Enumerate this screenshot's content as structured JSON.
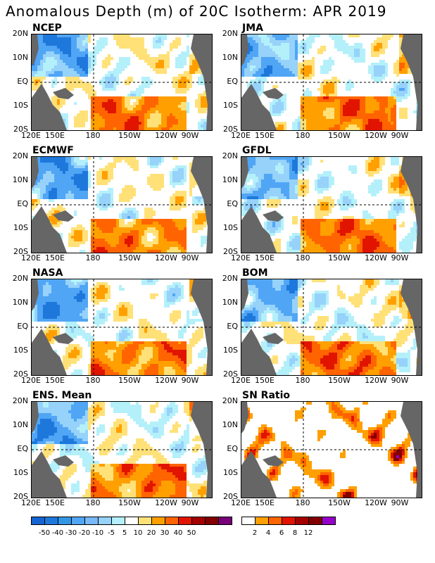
{
  "title": "Anomalous Depth (m) of 20C Isotherm: APR 2019",
  "chart_data": [
    {
      "type": "heatmap",
      "title": "NCEP",
      "field": "depth_anomaly",
      "x_ticks": [
        "120E",
        "150E",
        "180",
        "150W",
        "120W",
        "90W"
      ],
      "y_ticks": [
        "20N",
        "10N",
        "EQ",
        "10S",
        "20S"
      ]
    },
    {
      "type": "heatmap",
      "title": "JMA",
      "field": "depth_anomaly",
      "x_ticks": [
        "120E",
        "150E",
        "180",
        "150W",
        "120W",
        "90W"
      ],
      "y_ticks": [
        "20N",
        "10N",
        "EQ",
        "10S",
        "20S"
      ]
    },
    {
      "type": "heatmap",
      "title": "ECMWF",
      "field": "depth_anomaly",
      "x_ticks": [
        "120E",
        "150E",
        "180",
        "150W",
        "120W",
        "90W"
      ],
      "y_ticks": [
        "20N",
        "10N",
        "EQ",
        "10S",
        "20S"
      ]
    },
    {
      "type": "heatmap",
      "title": "GFDL",
      "field": "depth_anomaly",
      "x_ticks": [
        "120E",
        "150E",
        "180",
        "150W",
        "120W",
        "90W"
      ],
      "y_ticks": [
        "20N",
        "10N",
        "EQ",
        "10S",
        "20S"
      ]
    },
    {
      "type": "heatmap",
      "title": "NASA",
      "field": "depth_anomaly",
      "x_ticks": [
        "120E",
        "150E",
        "180",
        "150W",
        "120W",
        "90W"
      ],
      "y_ticks": [
        "20N",
        "10N",
        "EQ",
        "10S",
        "20S"
      ]
    },
    {
      "type": "heatmap",
      "title": "BOM",
      "field": "depth_anomaly",
      "x_ticks": [
        "120E",
        "150E",
        "180",
        "150W",
        "120W",
        "90W"
      ],
      "y_ticks": [
        "20N",
        "10N",
        "EQ",
        "10S",
        "20S"
      ]
    },
    {
      "type": "heatmap",
      "title": "ENS. Mean",
      "field": "depth_anomaly",
      "x_ticks": [
        "120E",
        "150E",
        "180",
        "150W",
        "120W",
        "90W"
      ],
      "y_ticks": [
        "20N",
        "10N",
        "EQ",
        "10S",
        "20S"
      ]
    },
    {
      "type": "heatmap",
      "title": "SN Ratio",
      "field": "sn_ratio",
      "x_ticks": [
        "120E",
        "150E",
        "180",
        "150W",
        "120W",
        "90W"
      ],
      "y_ticks": [
        "20N",
        "10N",
        "EQ",
        "10S",
        "20S"
      ]
    }
  ],
  "legend_anomaly": {
    "labels": [
      "-50",
      "-40",
      "-30",
      "-20",
      "-10",
      "-5",
      "5",
      "10",
      "20",
      "30",
      "40",
      "50"
    ],
    "colors": [
      "#1464d2",
      "#1e78dc",
      "#3296e6",
      "#50a5f5",
      "#78b9fa",
      "#96d2fa",
      "#b4f0fa",
      "#ffffff",
      "#ffe178",
      "#ffa000",
      "#ff6400",
      "#e11400",
      "#a50000",
      "#820000",
      "#780078"
    ]
  },
  "legend_sn": {
    "labels": [
      "2",
      "4",
      "6",
      "8",
      "12"
    ],
    "colors": [
      "#ffffff",
      "#ffa000",
      "#ff6400",
      "#e11400",
      "#a50000",
      "#820000",
      "#9600c8"
    ]
  },
  "land_color": "#666666"
}
